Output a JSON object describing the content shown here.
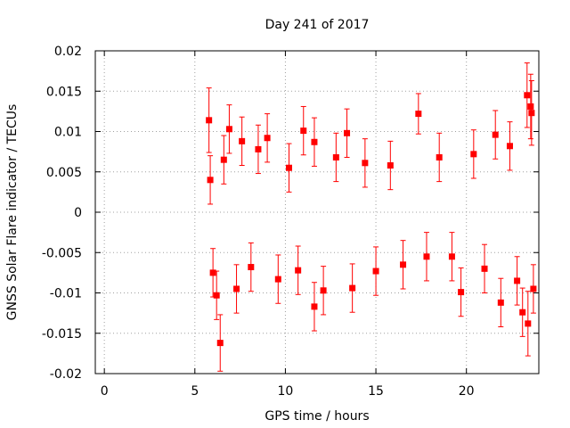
{
  "chart_data": {
    "type": "scatter",
    "title": "Day 241 of 2017",
    "xlabel": "GPS time / hours",
    "ylabel": "GNSS Solar Flare indicator / TECUs",
    "xlim": [
      -0.5,
      24
    ],
    "ylim": [
      -0.02,
      0.02
    ],
    "xticks": [
      0,
      5,
      10,
      15,
      20
    ],
    "xtick_labels": [
      "0",
      "5",
      "10",
      "15",
      "20"
    ],
    "yticks": [
      -0.02,
      -0.015,
      -0.01,
      -0.005,
      0,
      0.005,
      0.01,
      0.015,
      0.02
    ],
    "ytick_labels": [
      "-0.02",
      "-0.015",
      "-0.01",
      "-0.005",
      "0",
      "0.005",
      "0.01",
      "0.015",
      "0.02"
    ],
    "grid": true,
    "series": [
      {
        "color": "#ff0000",
        "marker": "square",
        "error_bars": true,
        "points": [
          {
            "x": 5.78,
            "y": 0.0114,
            "err": 0.004
          },
          {
            "x": 5.85,
            "y": 0.004,
            "err": 0.003
          },
          {
            "x": 6.0,
            "y": -0.0075,
            "err": 0.003
          },
          {
            "x": 6.2,
            "y": -0.0103,
            "err": 0.003
          },
          {
            "x": 6.4,
            "y": -0.0162,
            "err": 0.0035
          },
          {
            "x": 6.6,
            "y": 0.0065,
            "err": 0.003
          },
          {
            "x": 6.9,
            "y": 0.0103,
            "err": 0.003
          },
          {
            "x": 7.3,
            "y": -0.0095,
            "err": 0.003
          },
          {
            "x": 7.6,
            "y": 0.0088,
            "err": 0.003
          },
          {
            "x": 8.1,
            "y": -0.0068,
            "err": 0.003
          },
          {
            "x": 8.5,
            "y": 0.0078,
            "err": 0.003
          },
          {
            "x": 9.0,
            "y": 0.0092,
            "err": 0.003
          },
          {
            "x": 9.6,
            "y": -0.0083,
            "err": 0.003
          },
          {
            "x": 10.2,
            "y": 0.0055,
            "err": 0.003
          },
          {
            "x": 10.7,
            "y": -0.0072,
            "err": 0.003
          },
          {
            "x": 11.0,
            "y": 0.0101,
            "err": 0.003
          },
          {
            "x": 11.6,
            "y": -0.0117,
            "err": 0.003
          },
          {
            "x": 11.6,
            "y": 0.0087,
            "err": 0.003
          },
          {
            "x": 12.1,
            "y": -0.0097,
            "err": 0.003
          },
          {
            "x": 12.8,
            "y": 0.0068,
            "err": 0.003
          },
          {
            "x": 13.4,
            "y": 0.0098,
            "err": 0.003
          },
          {
            "x": 13.7,
            "y": -0.0094,
            "err": 0.003
          },
          {
            "x": 14.4,
            "y": 0.0061,
            "err": 0.003
          },
          {
            "x": 15.0,
            "y": -0.0073,
            "err": 0.003
          },
          {
            "x": 15.8,
            "y": 0.0058,
            "err": 0.003
          },
          {
            "x": 16.5,
            "y": -0.0065,
            "err": 0.003
          },
          {
            "x": 17.35,
            "y": 0.0122,
            "err": 0.0025
          },
          {
            "x": 17.8,
            "y": -0.0055,
            "err": 0.003
          },
          {
            "x": 18.5,
            "y": 0.0068,
            "err": 0.003
          },
          {
            "x": 19.2,
            "y": -0.0055,
            "err": 0.003
          },
          {
            "x": 19.7,
            "y": -0.0099,
            "err": 0.003
          },
          {
            "x": 20.4,
            "y": 0.0072,
            "err": 0.003
          },
          {
            "x": 21.0,
            "y": -0.007,
            "err": 0.003
          },
          {
            "x": 21.6,
            "y": 0.0096,
            "err": 0.003
          },
          {
            "x": 21.9,
            "y": -0.0112,
            "err": 0.003
          },
          {
            "x": 22.4,
            "y": 0.0082,
            "err": 0.003
          },
          {
            "x": 22.8,
            "y": -0.0085,
            "err": 0.003
          },
          {
            "x": 23.1,
            "y": -0.0124,
            "err": 0.003
          },
          {
            "x": 23.35,
            "y": 0.0145,
            "err": 0.004
          },
          {
            "x": 23.4,
            "y": -0.0138,
            "err": 0.004
          },
          {
            "x": 23.55,
            "y": 0.0131,
            "err": 0.004
          },
          {
            "x": 23.6,
            "y": 0.0123,
            "err": 0.004
          },
          {
            "x": 23.7,
            "y": -0.0095,
            "err": 0.003
          }
        ]
      }
    ]
  }
}
